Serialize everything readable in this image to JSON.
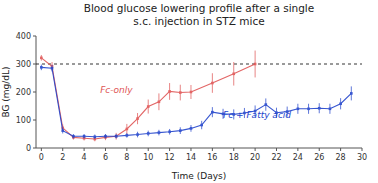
{
  "chart_data": {
    "type": "line",
    "title": "Blood glucose lowering profile after a single\ns.c. injection in STZ mice",
    "x_label": "Time (Days)",
    "y_label": "BG (mg/dL)",
    "xlim": [
      -0.5,
      30
    ],
    "ylim": [
      0,
      400
    ],
    "xticks": [
      0,
      2,
      4,
      6,
      8,
      10,
      12,
      14,
      16,
      18,
      20,
      22,
      24,
      26,
      28,
      30
    ],
    "yticks": [
      0,
      100,
      200,
      300,
      400
    ],
    "grid": false,
    "reference_y": 300,
    "series": [
      {
        "color": "#e05555",
        "marker": "square",
        "line_style": "solid",
        "x": [
          0,
          1,
          2,
          3,
          4,
          5,
          6,
          7,
          8,
          9,
          10,
          11,
          12,
          13,
          14,
          16,
          18,
          20
        ],
        "values": [
          322,
          292,
          72,
          38,
          35,
          32,
          38,
          42,
          68,
          105,
          148,
          165,
          202,
          198,
          200,
          232,
          265,
          300
        ],
        "errors": [
          10,
          15,
          12,
          8,
          8,
          8,
          10,
          12,
          18,
          20,
          25,
          30,
          30,
          28,
          25,
          35,
          42,
          48
        ]
      },
      {
        "color": "#2244cc",
        "marker": "square",
        "line_style": "solid",
        "x": [
          0,
          1,
          2,
          3,
          4,
          5,
          6,
          7,
          8,
          9,
          10,
          11,
          12,
          13,
          14,
          15,
          16,
          17,
          18,
          19,
          20,
          21,
          22,
          23,
          24,
          25,
          26,
          27,
          28,
          29
        ],
        "values": [
          288,
          285,
          62,
          42,
          42,
          40,
          42,
          42,
          45,
          48,
          52,
          55,
          58,
          62,
          70,
          82,
          128,
          122,
          120,
          125,
          132,
          155,
          126,
          130,
          140,
          140,
          142,
          140,
          158,
          195
        ],
        "errors": [
          10,
          12,
          10,
          8,
          8,
          8,
          8,
          8,
          8,
          10,
          10,
          10,
          10,
          12,
          12,
          15,
          18,
          18,
          18,
          18,
          20,
          22,
          18,
          18,
          18,
          18,
          18,
          18,
          20,
          25
        ]
      }
    ],
    "annotations": [
      {
        "text": "Fc-only",
        "x": 5.5,
        "y": 195,
        "color": "#e05555"
      },
      {
        "text": "Fc + Fatty acid",
        "x": 17.0,
        "y": 108,
        "color": "#2244cc"
      }
    ]
  }
}
